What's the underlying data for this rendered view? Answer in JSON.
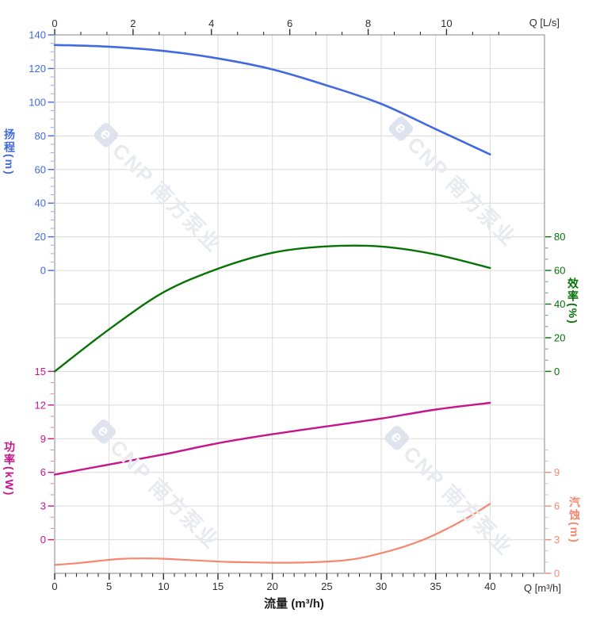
{
  "watermark": {
    "text": "CNP 南方泵业",
    "logo_letter": "e"
  },
  "colors": {
    "head": "#4169E1",
    "efficiency": "#077307",
    "power": "#C5158C",
    "npsh": "#F5876F",
    "grid": "#DADADA",
    "border": "#9B9B9F",
    "tick_dark": "#2f2f2f"
  },
  "chart_data": {
    "type": "line",
    "title": "",
    "axes": {
      "top": {
        "unit": "Q [L/s]",
        "majors": [
          0,
          2,
          4,
          6,
          8,
          10
        ],
        "range_lps": [
          0,
          12.5
        ]
      },
      "bottom": {
        "title": "流量 (m³/h)",
        "unit": "Q [m³/h]",
        "majors": [
          0,
          5,
          10,
          15,
          20,
          25,
          30,
          35,
          40
        ],
        "range": [
          0,
          45
        ]
      },
      "head": {
        "title": "扬程(m)",
        "color": "#4169E1",
        "majors": [
          140,
          120,
          100,
          80,
          60,
          40,
          20,
          0
        ],
        "range": [
          0,
          140
        ]
      },
      "eff": {
        "title": "效率(%)",
        "color": "#077307",
        "majors": [
          80,
          60,
          40,
          20,
          0
        ],
        "range": [
          0,
          80
        ]
      },
      "power": {
        "title": "功率(kW)",
        "color": "#C5158C",
        "majors": [
          15,
          12,
          9,
          6,
          3,
          0
        ],
        "range": [
          0,
          15
        ]
      },
      "npsh": {
        "title": "汽蚀(m)",
        "color": "#F5876F",
        "majors": [
          9,
          6,
          3,
          0
        ],
        "range": [
          0,
          9
        ]
      }
    },
    "grid": "on",
    "legend": "none",
    "series": [
      {
        "id": "head",
        "name": "扬程",
        "axis": "head",
        "color": "#4169E1",
        "width": 2.6,
        "x": [
          0,
          5,
          10,
          15,
          20,
          25,
          30,
          35,
          40
        ],
        "values": [
          134,
          133,
          130.5,
          126,
          119.5,
          110,
          99,
          84,
          69
        ]
      },
      {
        "id": "efficiency",
        "name": "效率",
        "axis": "eff",
        "color": "#077307",
        "width": 2.4,
        "x": [
          0,
          5,
          10,
          15,
          20,
          25,
          30,
          35,
          40
        ],
        "values": [
          0,
          25,
          47,
          61,
          70.5,
          74.3,
          74.2,
          69.5,
          61.5
        ]
      },
      {
        "id": "power",
        "name": "功率",
        "axis": "power",
        "color": "#C5158C",
        "width": 2.4,
        "x": [
          0,
          5,
          10,
          15,
          20,
          25,
          30,
          35,
          40
        ],
        "values": [
          5.8,
          6.7,
          7.6,
          8.6,
          9.4,
          10.1,
          10.8,
          11.6,
          12.2
        ]
      },
      {
        "id": "npsh",
        "name": "汽蚀",
        "axis": "npsh",
        "color": "#F5876F",
        "width": 2.2,
        "x": [
          0,
          2,
          4,
          6,
          8,
          10,
          13,
          16,
          20,
          23,
          26,
          28,
          30,
          32,
          34,
          36,
          38,
          40
        ],
        "values": [
          0.75,
          0.9,
          1.1,
          1.28,
          1.33,
          1.3,
          1.15,
          1.02,
          0.95,
          0.97,
          1.1,
          1.35,
          1.8,
          2.35,
          3.05,
          3.95,
          5.0,
          6.2
        ]
      }
    ]
  }
}
